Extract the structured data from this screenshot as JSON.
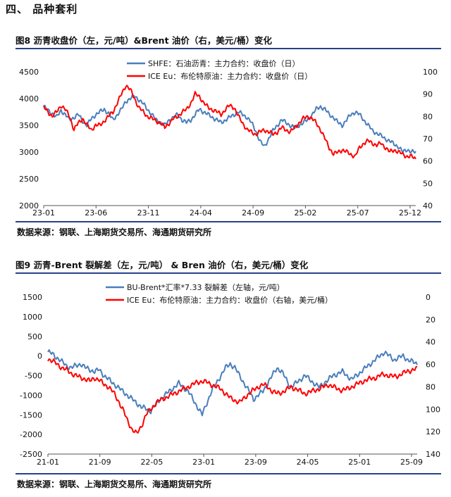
{
  "section_title": "四、   品种套利",
  "source_text": "数据来源：钢联、上海期货交易所、海通期货研究所",
  "colors": {
    "blue": "#4a7ebb",
    "red": "#ff0000",
    "rule": "#27418a"
  },
  "chart_data": [
    {
      "id": "fig8",
      "type": "line",
      "title": "图8   沥青收盘价（左，元/吨）&Brent 油价（右，美元/桶）变化",
      "x_tick_labels": [
        "23-01",
        "23-06",
        "23-11",
        "24-04",
        "24-09",
        "25-02",
        "25-07",
        "25-12"
      ],
      "y_left": {
        "min": 2000,
        "max": 4500,
        "ticks": [
          2000,
          2500,
          3000,
          3500,
          4000,
          4500
        ]
      },
      "y_right": {
        "min": 40,
        "max": 100,
        "ticks": [
          40,
          50,
          60,
          70,
          80,
          90,
          100
        ],
        "inverted": false
      },
      "series": [
        {
          "name": "SHFE：石油沥青：主力合约：收盘价（日）",
          "axis": "left",
          "color": "#4a7ebb",
          "values": [
            3850,
            3780,
            3720,
            3650,
            3780,
            3700,
            3600,
            3650,
            3700,
            3580,
            3500,
            3620,
            3700,
            3750,
            3800,
            3720,
            3600,
            3700,
            3800,
            3950,
            4000,
            4050,
            3980,
            3900,
            3800,
            3700,
            3600,
            3550,
            3500,
            3600,
            3650,
            3700,
            3600,
            3550,
            3600,
            3700,
            3800,
            3750,
            3700,
            3650,
            3600,
            3550,
            3600,
            3650,
            3700,
            3750,
            3700,
            3650,
            3550,
            3400,
            3200,
            3100,
            3250,
            3400,
            3500,
            3600,
            3550,
            3500,
            3450,
            3500,
            3550,
            3600,
            3700,
            3800,
            3850,
            3800,
            3700,
            3650,
            3550,
            3500,
            3600,
            3700,
            3750,
            3700,
            3600,
            3500,
            3400,
            3350,
            3300,
            3250,
            3200,
            3150,
            3100,
            3000,
            3050,
            3000,
            3000
          ]
        },
        {
          "name": "ICE Eu：布伦特原油：主力合约：收盘价（日）",
          "axis": "right",
          "color": "#ff0000",
          "values": [
            84,
            82,
            80,
            82,
            85,
            83,
            80,
            74,
            77,
            79,
            76,
            74,
            76,
            76,
            78,
            80,
            82,
            86,
            90,
            94,
            92,
            88,
            84,
            82,
            80,
            79,
            78,
            77,
            75,
            77,
            79,
            80,
            82,
            83,
            86,
            90,
            89,
            86,
            84,
            83,
            82,
            81,
            83,
            85,
            84,
            80,
            77,
            74,
            73,
            72,
            73,
            74,
            73,
            72,
            73,
            75,
            74,
            73,
            75,
            77,
            79,
            80,
            79,
            77,
            74,
            70,
            66,
            63,
            64,
            65,
            64,
            63,
            62,
            66,
            68,
            69,
            68,
            67,
            68,
            66,
            64,
            65,
            64,
            63,
            62,
            62,
            61
          ]
        }
      ]
    },
    {
      "id": "fig9",
      "type": "line",
      "title": "图9   沥青-Brent 裂解差（左，元/吨）  & Bren 油价（右，美元/桶）变化",
      "x_tick_labels": [
        "21-01",
        "21-09",
        "22-05",
        "23-01",
        "23-09",
        "24-05",
        "25-01",
        "25-09"
      ],
      "y_left": {
        "min": -2500,
        "max": 1500,
        "ticks": [
          -2500,
          -2000,
          -1500,
          -1000,
          -500,
          0,
          500,
          1000,
          1500
        ]
      },
      "y_right": {
        "min": 0,
        "max": 140,
        "ticks": [
          0,
          20,
          40,
          60,
          80,
          100,
          120,
          140
        ],
        "inverted": true
      },
      "series": [
        {
          "name": "BU-Brent*汇率*7.33 裂解差（左轴，元/吨）",
          "axis": "left",
          "color": "#4a7ebb",
          "values": [
            100,
            50,
            -50,
            -150,
            -250,
            -300,
            -250,
            -200,
            -300,
            -350,
            -400,
            -350,
            -500,
            -600,
            -700,
            -800,
            -900,
            -1000,
            -1100,
            -1200,
            -1300,
            -1350,
            -1400,
            -1250,
            -1100,
            -1000,
            -900,
            -800,
            -700,
            -800,
            -900,
            -1100,
            -1300,
            -1500,
            -1200,
            -900,
            -700,
            -500,
            -300,
            -200,
            -300,
            -500,
            -700,
            -900,
            -1100,
            -1000,
            -900,
            -700,
            -500,
            -300,
            -400,
            -600,
            -800,
            -700,
            -600,
            -500,
            -600,
            -700,
            -800,
            -700,
            -600,
            -500,
            -450,
            -400,
            -500,
            -600,
            -500,
            -400,
            -300,
            -200,
            -100,
            0,
            100,
            0,
            -100,
            -50,
            0,
            -100,
            -150,
            -200
          ]
        },
        {
          "name": "ICE Eu：布伦特原油：主力合约：收盘价（右轴，美元/桶）",
          "axis": "right",
          "color": "#ff0000",
          "values": [
            55,
            57,
            60,
            63,
            65,
            68,
            70,
            72,
            73,
            75,
            72,
            74,
            78,
            80,
            85,
            92,
            100,
            110,
            118,
            122,
            115,
            105,
            100,
            95,
            92,
            90,
            88,
            86,
            84,
            82,
            80,
            78,
            76,
            75,
            76,
            78,
            80,
            82,
            86,
            90,
            92,
            94,
            90,
            86,
            83,
            80,
            78,
            80,
            84,
            86,
            85,
            83,
            80,
            82,
            84,
            86,
            85,
            83,
            82,
            80,
            78,
            80,
            82,
            83,
            82,
            80,
            78,
            76,
            74,
            73,
            72,
            70,
            69,
            70,
            71,
            70,
            68,
            66,
            65,
            64
          ]
        }
      ]
    }
  ]
}
